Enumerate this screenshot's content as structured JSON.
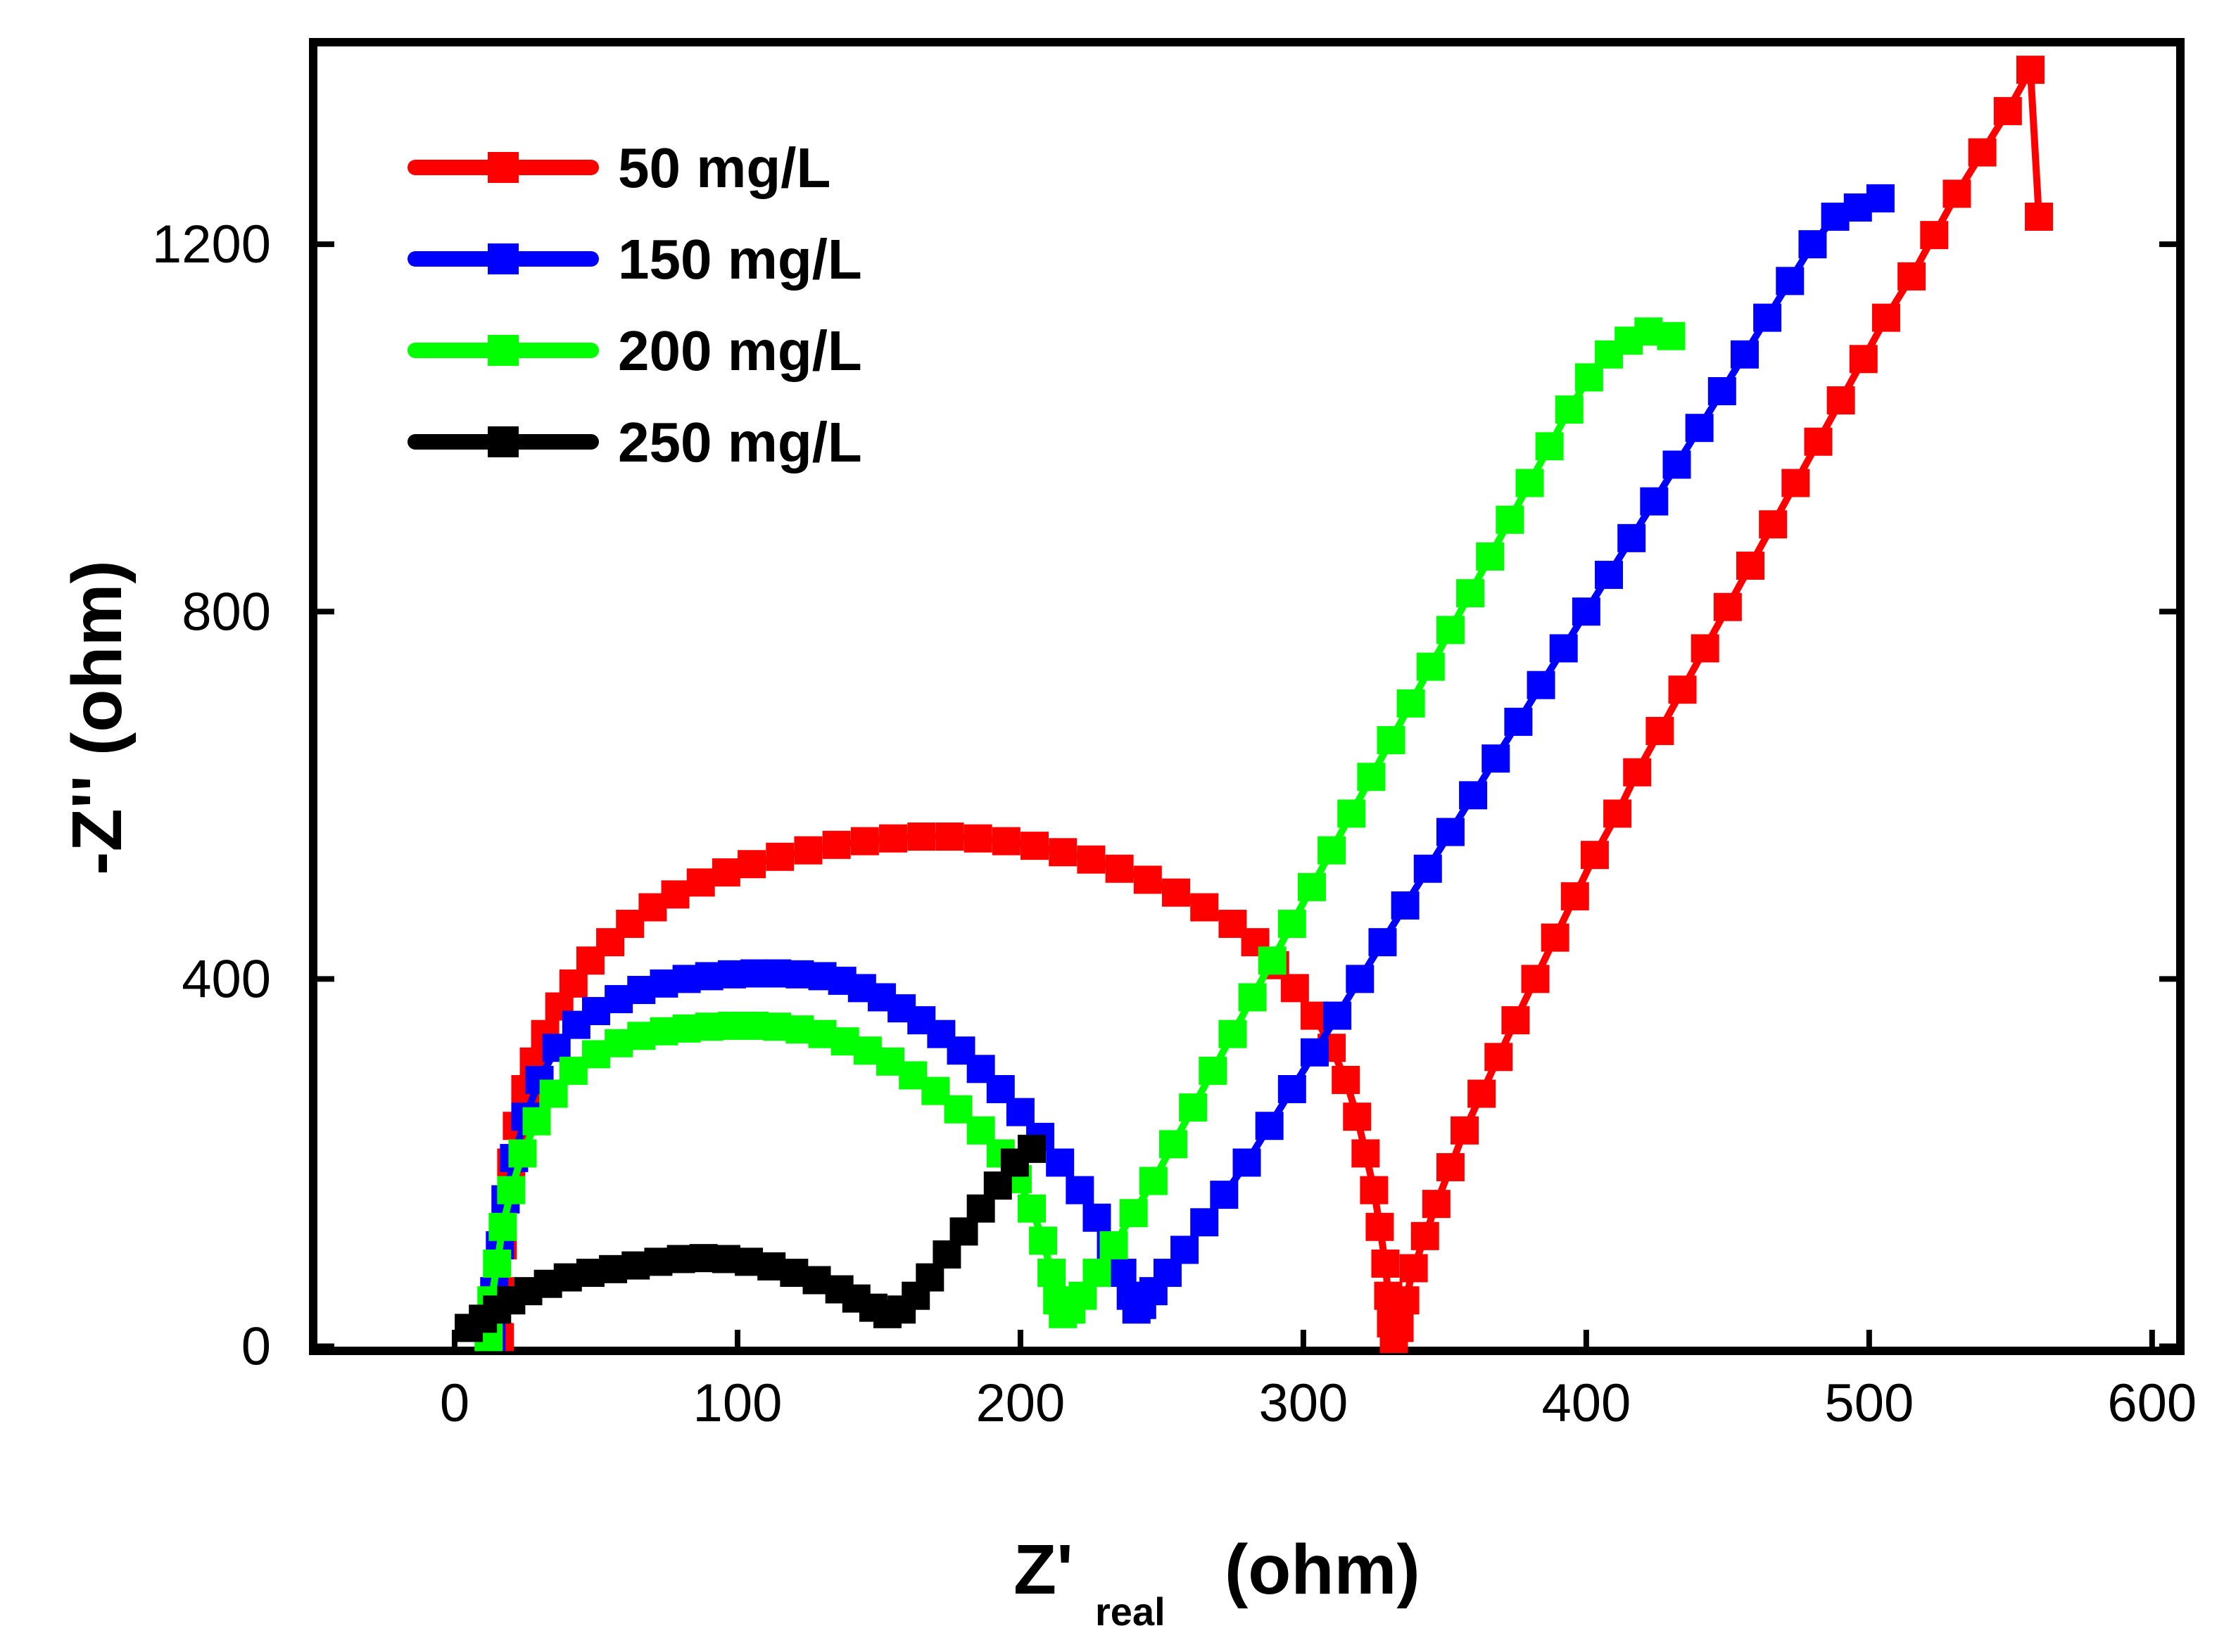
{
  "chart_data": {
    "type": "scatter",
    "title": "",
    "xlabel": "Z'",
    "xlabel_sub": "real",
    "xlabel_unit": "(ohm)",
    "ylabel": "-Z'' (ohm)",
    "xlim": [
      -50,
      610
    ],
    "ylim": [
      -5,
      1420
    ],
    "xticks": [
      0,
      100,
      200,
      300,
      400,
      500,
      600
    ],
    "yticks": [
      0,
      400,
      800,
      1200
    ],
    "xtick_labels": [
      "0",
      "100",
      "200",
      "300",
      "400",
      "500",
      "600"
    ],
    "ytick_labels": [
      "0",
      "400",
      "800",
      "1200"
    ],
    "legend_position": "top-left",
    "series": [
      {
        "name": "50 mg/L",
        "color": "#ff0000",
        "points": [
          [
            16,
            10
          ],
          [
            16,
            60
          ],
          [
            17,
            110
          ],
          [
            18,
            160
          ],
          [
            20,
            200
          ],
          [
            22,
            240
          ],
          [
            25,
            280
          ],
          [
            28,
            310
          ],
          [
            32,
            340
          ],
          [
            37,
            370
          ],
          [
            42,
            395
          ],
          [
            48,
            420
          ],
          [
            55,
            440
          ],
          [
            62,
            460
          ],
          [
            70,
            478
          ],
          [
            78,
            492
          ],
          [
            87,
            505
          ],
          [
            96,
            516
          ],
          [
            105,
            525
          ],
          [
            115,
            533
          ],
          [
            125,
            540
          ],
          [
            135,
            546
          ],
          [
            145,
            550
          ],
          [
            155,
            553
          ],
          [
            165,
            555
          ],
          [
            175,
            555
          ],
          [
            185,
            553
          ],
          [
            195,
            550
          ],
          [
            205,
            545
          ],
          [
            215,
            538
          ],
          [
            225,
            530
          ],
          [
            235,
            520
          ],
          [
            245,
            508
          ],
          [
            255,
            494
          ],
          [
            265,
            478
          ],
          [
            275,
            460
          ],
          [
            283,
            440
          ],
          [
            290,
            415
          ],
          [
            297,
            390
          ],
          [
            304,
            360
          ],
          [
            310,
            325
          ],
          [
            315,
            290
          ],
          [
            319,
            250
          ],
          [
            322,
            210
          ],
          [
            325,
            170
          ],
          [
            327,
            130
          ],
          [
            329,
            90
          ],
          [
            330,
            55
          ],
          [
            331,
            25
          ],
          [
            332,
            8
          ],
          [
            334,
            20
          ],
          [
            336,
            50
          ],
          [
            339,
            85
          ],
          [
            343,
            120
          ],
          [
            347,
            155
          ],
          [
            352,
            195
          ],
          [
            357,
            235
          ],
          [
            363,
            275
          ],
          [
            369,
            315
          ],
          [
            375,
            355
          ],
          [
            382,
            400
          ],
          [
            389,
            445
          ],
          [
            396,
            490
          ],
          [
            403,
            535
          ],
          [
            411,
            580
          ],
          [
            418,
            625
          ],
          [
            426,
            670
          ],
          [
            434,
            715
          ],
          [
            442,
            760
          ],
          [
            450,
            805
          ],
          [
            458,
            850
          ],
          [
            466,
            895
          ],
          [
            474,
            940
          ],
          [
            482,
            985
          ],
          [
            490,
            1030
          ],
          [
            498,
            1075
          ],
          [
            506,
            1120
          ],
          [
            515,
            1165
          ],
          [
            523,
            1210
          ],
          [
            531,
            1255
          ],
          [
            540,
            1300
          ],
          [
            549,
            1345
          ],
          [
            557,
            1390
          ],
          [
            560,
            1230
          ]
        ]
      },
      {
        "name": "150 mg/L",
        "color": "#0000ff",
        "points": [
          [
            13,
            10
          ],
          [
            14,
            60
          ],
          [
            16,
            110
          ],
          [
            18,
            160
          ],
          [
            21,
            205
          ],
          [
            25,
            250
          ],
          [
            30,
            290
          ],
          [
            36,
            325
          ],
          [
            43,
            350
          ],
          [
            50,
            365
          ],
          [
            58,
            378
          ],
          [
            66,
            388
          ],
          [
            74,
            395
          ],
          [
            82,
            400
          ],
          [
            90,
            403
          ],
          [
            98,
            405
          ],
          [
            106,
            406
          ],
          [
            114,
            406
          ],
          [
            122,
            405
          ],
          [
            130,
            403
          ],
          [
            137,
            398
          ],
          [
            144,
            390
          ],
          [
            151,
            380
          ],
          [
            158,
            368
          ],
          [
            165,
            355
          ],
          [
            172,
            340
          ],
          [
            179,
            322
          ],
          [
            186,
            302
          ],
          [
            193,
            280
          ],
          [
            200,
            255
          ],
          [
            207,
            228
          ],
          [
            214,
            200
          ],
          [
            221,
            170
          ],
          [
            227,
            140
          ],
          [
            232,
            110
          ],
          [
            236,
            80
          ],
          [
            239,
            55
          ],
          [
            241,
            40
          ],
          [
            243,
            45
          ],
          [
            247,
            60
          ],
          [
            252,
            80
          ],
          [
            258,
            105
          ],
          [
            265,
            135
          ],
          [
            272,
            165
          ],
          [
            280,
            200
          ],
          [
            288,
            240
          ],
          [
            296,
            280
          ],
          [
            304,
            320
          ],
          [
            312,
            360
          ],
          [
            320,
            400
          ],
          [
            328,
            440
          ],
          [
            336,
            480
          ],
          [
            344,
            520
          ],
          [
            352,
            560
          ],
          [
            360,
            600
          ],
          [
            368,
            640
          ],
          [
            376,
            680
          ],
          [
            384,
            720
          ],
          [
            392,
            760
          ],
          [
            400,
            800
          ],
          [
            408,
            840
          ],
          [
            416,
            880
          ],
          [
            424,
            920
          ],
          [
            432,
            960
          ],
          [
            440,
            1000
          ],
          [
            448,
            1040
          ],
          [
            456,
            1080
          ],
          [
            464,
            1120
          ],
          [
            472,
            1160
          ],
          [
            480,
            1200
          ],
          [
            488,
            1230
          ],
          [
            496,
            1240
          ],
          [
            504,
            1250
          ]
        ]
      },
      {
        "name": "200 mg/L",
        "color": "#00ff00",
        "points": [
          [
            12,
            10
          ],
          [
            13,
            50
          ],
          [
            15,
            90
          ],
          [
            17,
            130
          ],
          [
            20,
            170
          ],
          [
            24,
            210
          ],
          [
            29,
            245
          ],
          [
            35,
            275
          ],
          [
            42,
            300
          ],
          [
            50,
            318
          ],
          [
            58,
            330
          ],
          [
            66,
            338
          ],
          [
            74,
            343
          ],
          [
            82,
            346
          ],
          [
            90,
            348
          ],
          [
            98,
            349
          ],
          [
            106,
            349
          ],
          [
            114,
            348
          ],
          [
            122,
            345
          ],
          [
            130,
            340
          ],
          [
            138,
            332
          ],
          [
            146,
            322
          ],
          [
            154,
            310
          ],
          [
            162,
            295
          ],
          [
            170,
            278
          ],
          [
            178,
            258
          ],
          [
            186,
            235
          ],
          [
            193,
            210
          ],
          [
            199,
            182
          ],
          [
            204,
            150
          ],
          [
            208,
            115
          ],
          [
            211,
            80
          ],
          [
            213,
            50
          ],
          [
            215,
            35
          ],
          [
            218,
            40
          ],
          [
            222,
            55
          ],
          [
            227,
            80
          ],
          [
            233,
            110
          ],
          [
            240,
            145
          ],
          [
            247,
            180
          ],
          [
            254,
            220
          ],
          [
            261,
            260
          ],
          [
            268,
            300
          ],
          [
            275,
            340
          ],
          [
            282,
            380
          ],
          [
            289,
            420
          ],
          [
            296,
            460
          ],
          [
            303,
            500
          ],
          [
            310,
            540
          ],
          [
            317,
            580
          ],
          [
            324,
            620
          ],
          [
            331,
            660
          ],
          [
            338,
            700
          ],
          [
            345,
            740
          ],
          [
            352,
            780
          ],
          [
            359,
            820
          ],
          [
            366,
            860
          ],
          [
            373,
            900
          ],
          [
            380,
            940
          ],
          [
            387,
            980
          ],
          [
            394,
            1020
          ],
          [
            401,
            1055
          ],
          [
            408,
            1080
          ],
          [
            415,
            1095
          ],
          [
            422,
            1105
          ],
          [
            430,
            1100
          ]
        ]
      },
      {
        "name": "250 mg/L",
        "color": "#000000",
        "points": [
          [
            5,
            20
          ],
          [
            10,
            30
          ],
          [
            15,
            40
          ],
          [
            20,
            50
          ],
          [
            26,
            60
          ],
          [
            33,
            68
          ],
          [
            40,
            75
          ],
          [
            48,
            80
          ],
          [
            56,
            84
          ],
          [
            64,
            88
          ],
          [
            72,
            92
          ],
          [
            80,
            95
          ],
          [
            88,
            96
          ],
          [
            96,
            95
          ],
          [
            104,
            92
          ],
          [
            112,
            87
          ],
          [
            120,
            80
          ],
          [
            128,
            72
          ],
          [
            136,
            62
          ],
          [
            142,
            52
          ],
          [
            148,
            42
          ],
          [
            153,
            35
          ],
          [
            158,
            40
          ],
          [
            163,
            55
          ],
          [
            168,
            75
          ],
          [
            174,
            100
          ],
          [
            180,
            125
          ],
          [
            186,
            150
          ],
          [
            192,
            175
          ],
          [
            198,
            200
          ],
          [
            204,
            215
          ]
        ]
      }
    ]
  }
}
